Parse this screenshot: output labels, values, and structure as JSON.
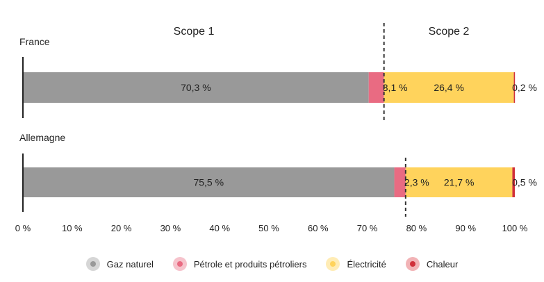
{
  "chart_data": {
    "type": "bar",
    "orientation": "horizontal",
    "stacked": true,
    "scope_labels": [
      "Scope 1",
      "Scope 2"
    ],
    "categories": [
      "France",
      "Allemagne"
    ],
    "series": [
      {
        "name": "Gaz naturel",
        "values": [
          70.3,
          75.5
        ],
        "labels": [
          "70,3 %",
          "75,5 %"
        ],
        "color": "#999999"
      },
      {
        "name": "Pétrole et produits pétroliers",
        "values": [
          3.1,
          2.3
        ],
        "labels": [
          "3,1 %",
          "2,3 %"
        ],
        "color": "#e96b82"
      },
      {
        "name": "Électricité",
        "values": [
          26.4,
          21.7
        ],
        "labels": [
          "26,4 %",
          "21,7 %"
        ],
        "color": "#ffd35c"
      },
      {
        "name": "Chaleur",
        "values": [
          0.2,
          0.5
        ],
        "labels": [
          "0,2 %",
          "0,5 %"
        ],
        "color": "#d0303a"
      }
    ],
    "scope_boundaries": [
      73.4,
      77.8
    ],
    "xlim": [
      0,
      100
    ],
    "xticks": [
      0,
      10,
      20,
      30,
      40,
      50,
      60,
      70,
      80,
      90,
      100
    ],
    "xtick_labels": [
      "0 %",
      "10 %",
      "20 %",
      "30 %",
      "40 %",
      "50 %",
      "60 %",
      "70 %",
      "80 %",
      "90 %",
      "100 %"
    ],
    "legend_position": "bottom",
    "grid": false
  },
  "legend": [
    {
      "label": "Gaz naturel",
      "color": "#999999",
      "halo": "#d6d6d6"
    },
    {
      "label": "Pétrole et produits pétroliers",
      "color": "#e96b82",
      "halo": "#f6c3cc"
    },
    {
      "label": "Électricité",
      "color": "#ffd35c",
      "halo": "#ffecb5"
    },
    {
      "label": "Chaleur",
      "color": "#d0303a",
      "halo": "#f2b3b6"
    }
  ]
}
